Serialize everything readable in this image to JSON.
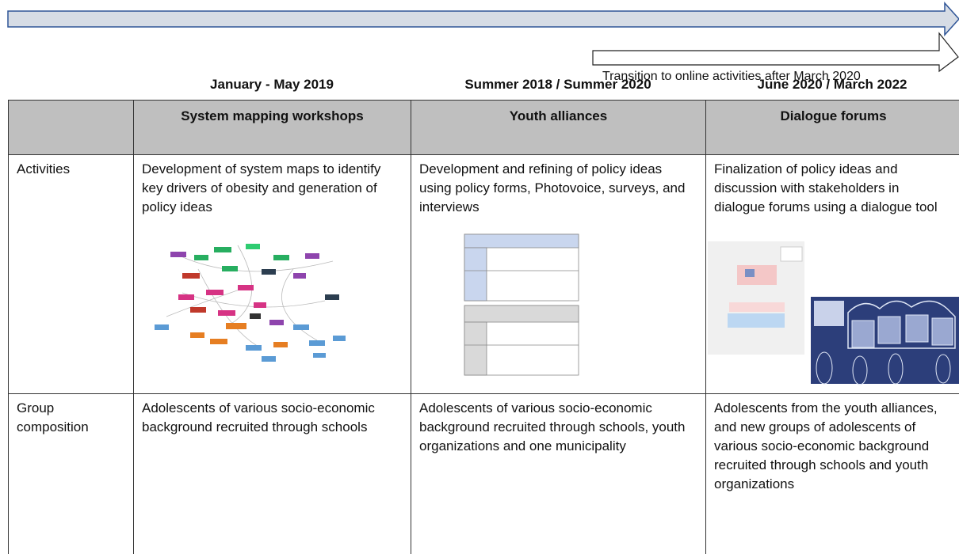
{
  "transition": "Transition to online activities after March 2020",
  "periods": [
    "January - May 2019",
    "Summer 2018 / Summer 2020",
    "June 2020 / March 2022"
  ],
  "table": {
    "header": [
      "System mapping workshops",
      "Youth alliances",
      "Dialogue forums"
    ],
    "rows": [
      {
        "label": "Activities",
        "cells": [
          "Development of system maps to identify key drivers of obesity and generation of policy ideas",
          "Development and refining of policy ideas using policy forms, Photovoice, surveys, and interviews",
          "Finalization of policy ideas and discussion with stakeholders in dialogue forums using a dialogue tool"
        ]
      },
      {
        "label": "Group composition",
        "cells": [
          "Adolescents of various socio-economic background recruited through schools",
          "Adolescents of various socio-economic background recruited through schools, youth organizations and one municipality",
          "Adolescents from the youth alliances, and new groups of adolescents of various socio-economic background recruited through schools and youth organizations"
        ]
      }
    ]
  }
}
